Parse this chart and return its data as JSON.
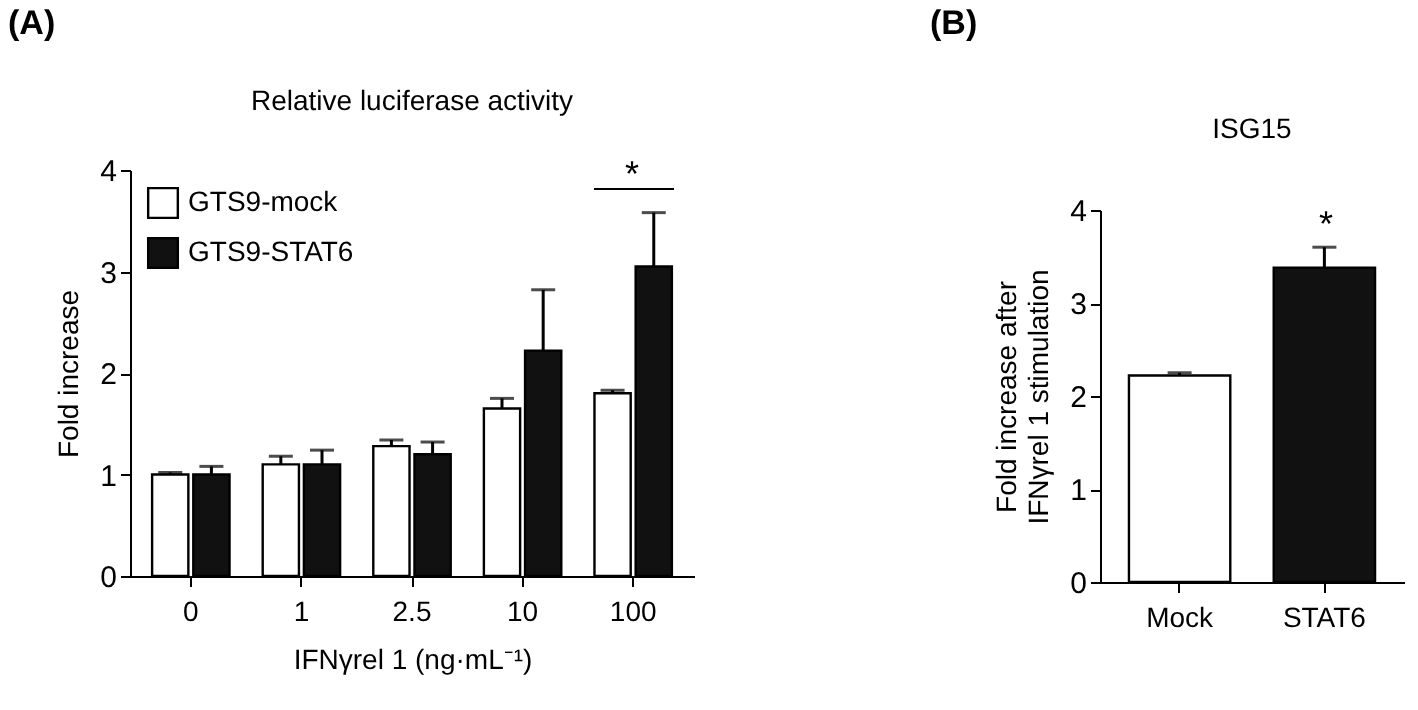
{
  "chart_data": [
    {
      "type": "bar",
      "title": "Relative luciferase activity",
      "xlabel": "IFNγrel 1 (ng·mL⁻¹)",
      "ylabel": "Fold increase",
      "categories": [
        "0",
        "1",
        "2.5",
        "10",
        "100"
      ],
      "series": [
        {
          "name": "GTS9-mock",
          "color": "#ffffff",
          "values": [
            1.0,
            1.1,
            1.28,
            1.65,
            1.8
          ],
          "errors": [
            [
              1.0,
              1.02
            ],
            [
              1.1,
              1.18
            ],
            [
              1.28,
              1.34
            ],
            [
              1.65,
              1.75
            ],
            [
              1.8,
              1.83
            ]
          ]
        },
        {
          "name": "GTS9-STAT6",
          "color": "#111111",
          "values": [
            1.0,
            1.1,
            1.2,
            2.22,
            3.05
          ],
          "errors": [
            [
              1.0,
              1.08
            ],
            [
              1.1,
              1.24
            ],
            [
              1.2,
              1.32
            ],
            [
              2.22,
              2.82
            ],
            [
              3.05,
              3.58
            ]
          ]
        }
      ],
      "ylim": [
        0,
        4
      ],
      "yticks": [
        0,
        1,
        2,
        3,
        4
      ],
      "grid": false,
      "legend": "top left",
      "annotations": [
        "(A)",
        "*"
      ]
    },
    {
      "type": "bar",
      "title": "ISG15",
      "ylabel": "Fold increase after IFNγrel 1 stimulation",
      "categories": [
        "Mock",
        "STAT6"
      ],
      "values": [
        2.22,
        3.38
      ],
      "colors": [
        "#ffffff",
        "#111111"
      ],
      "errors": [
        [
          2.22,
          2.25
        ],
        [
          3.38,
          3.6
        ]
      ],
      "ylim": [
        0,
        4
      ],
      "yticks": [
        0,
        1,
        2,
        3,
        4
      ],
      "grid": false,
      "legend": false,
      "annotations": [
        "(B)",
        "*"
      ]
    }
  ]
}
